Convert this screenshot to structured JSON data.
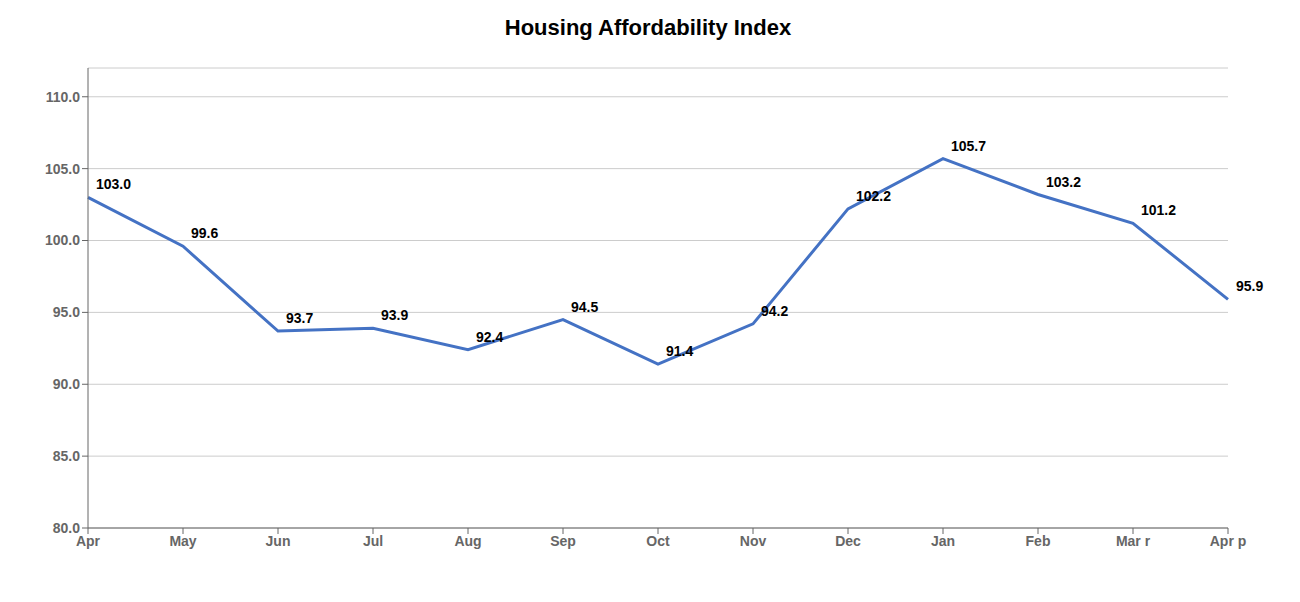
{
  "chart_data": {
    "type": "line",
    "title": "Housing Affordability Index",
    "categories": [
      "Apr",
      "May",
      "Jun",
      "Jul",
      "Aug",
      "Sep",
      "Oct",
      "Nov",
      "Dec",
      "Jan",
      "Feb",
      "Mar r",
      "Apr p"
    ],
    "values": [
      103.0,
      99.6,
      93.7,
      93.9,
      92.4,
      94.5,
      91.4,
      94.2,
      102.2,
      105.7,
      103.2,
      101.2,
      95.9
    ],
    "value_labels": [
      "103.0",
      "99.6",
      "93.7",
      "93.9",
      "92.4",
      "94.5",
      "91.4",
      "94.2",
      "102.2",
      "105.7",
      "103.2",
      "101.2",
      "95.9"
    ],
    "color": "#4472C4",
    "ylim": [
      80.0,
      112.0
    ],
    "yticks": [
      {
        "value": 80.0,
        "label": "80.0"
      },
      {
        "value": 85.0,
        "label": "85.0"
      },
      {
        "value": 90.0,
        "label": "90.0"
      },
      {
        "value": 95.0,
        "label": "95.0"
      },
      {
        "value": 100.0,
        "label": "100.0"
      },
      {
        "value": 105.0,
        "label": "105.0"
      },
      {
        "value": 110.0,
        "label": "110.0"
      }
    ],
    "grid": true,
    "data_labels": true
  }
}
